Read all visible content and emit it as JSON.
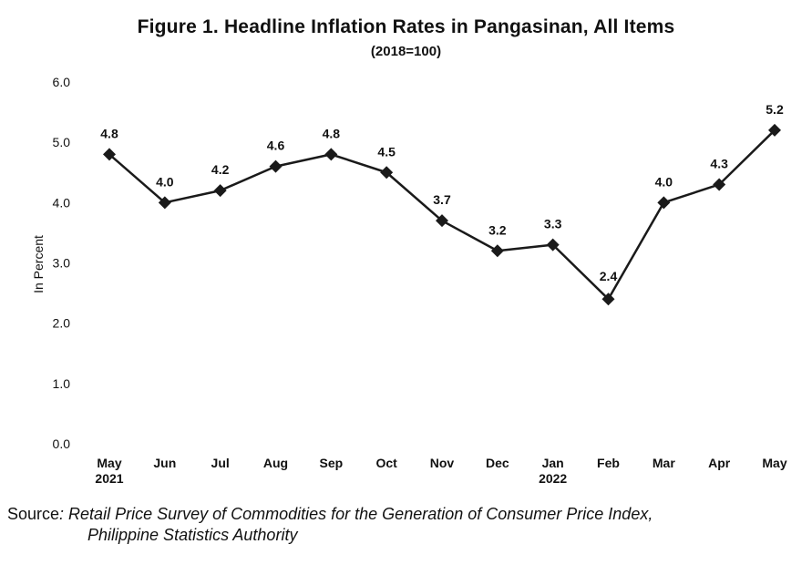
{
  "chart_data": {
    "type": "line",
    "title": "Figure 1. Headline Inflation Rates in Pangasinan, All Items",
    "subtitle": "(2018=100)",
    "ylabel": "In Percent",
    "xlabel": "",
    "ylim": [
      0,
      6
    ],
    "yticks": [
      "0.0",
      "1.0",
      "2.0",
      "3.0",
      "4.0",
      "5.0",
      "6.0"
    ],
    "categories": [
      "May",
      "Jun",
      "Jul",
      "Aug",
      "Sep",
      "Oct",
      "Nov",
      "Dec",
      "Jan",
      "Feb",
      "Mar",
      "Apr",
      "May"
    ],
    "year_labels": [
      "2021",
      "",
      "",
      "",
      "",
      "",
      "",
      "",
      "2022",
      "",
      "",
      "",
      ""
    ],
    "series": [
      {
        "values": [
          4.8,
          4.0,
          4.2,
          4.6,
          4.8,
          4.5,
          3.7,
          3.2,
          3.3,
          2.4,
          4.0,
          4.3,
          5.2
        ],
        "labels": [
          "4.8",
          "4.0",
          "4.2",
          "4.6",
          "4.8",
          "4.5",
          "3.7",
          "3.2",
          "3.3",
          "2.4",
          "4.0",
          "4.3",
          "5.2"
        ]
      }
    ],
    "grid": false,
    "marker": "diamond",
    "line_color": "#1a1a1a"
  },
  "source": {
    "label": "Source",
    "line1": ": Retail Price Survey of Commodities for the Generation of Consumer Price Index,",
    "line2": "Philippine Statistics Authority"
  }
}
